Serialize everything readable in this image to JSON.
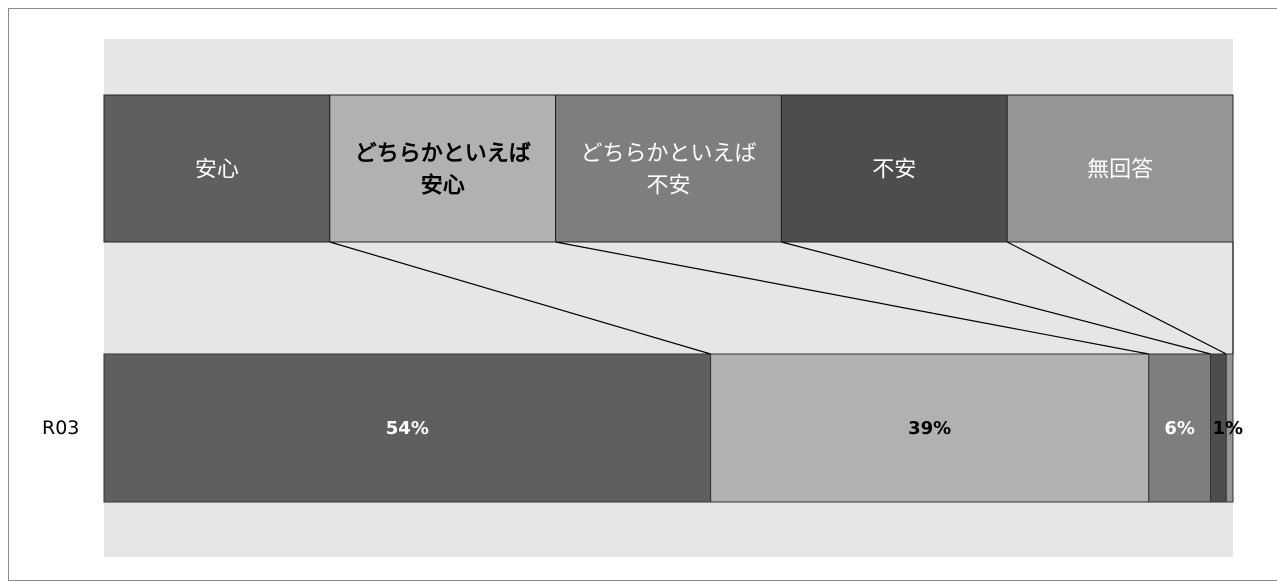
{
  "chart_data": {
    "type": "bar",
    "stacked": "100% horizontal",
    "row_labels": [
      "R03"
    ],
    "categories": [
      "安心",
      "どちらかといえば安心",
      "どちらかといえば不安",
      "不安",
      "無回答"
    ],
    "category_display": [
      [
        "安心"
      ],
      [
        "どちらかといえば",
        "安心"
      ],
      [
        "どちらかといえば",
        "不安"
      ],
      [
        "不安"
      ],
      [
        "無回答"
      ]
    ],
    "series": [
      {
        "values": [
          54.0,
          39.0,
          5.5,
          1.4,
          0.6
        ],
        "labels": [
          "54%",
          "39%",
          "6%",
          "1%",
          ""
        ]
      }
    ],
    "colors": [
      "#5f5f5f",
      "#b1b1b1",
      "#7e7e7e",
      "#4d4d4d",
      "#959595"
    ],
    "plot_background": "#e6e6e6",
    "bar_text_color": "#ffffff",
    "dark_text_color": "#000000",
    "grid": false,
    "legend": "header band above bars",
    "ylim": [
      0,
      100
    ]
  }
}
